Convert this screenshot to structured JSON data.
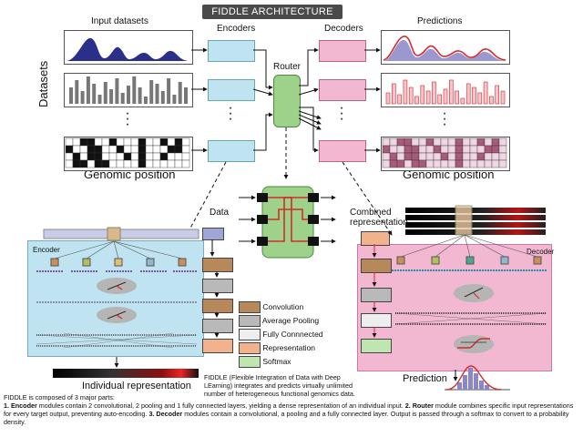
{
  "header": {
    "title": "FIDDLE ARCHITECTURE"
  },
  "top": {
    "input_label": "Input datasets",
    "datasets_label": "Datasets",
    "encoders_label": "Encoders",
    "router_label": "Router",
    "decoders_label": "Decoders",
    "predictions_label": "Predictions",
    "genomic_left": "Genomic position",
    "genomic_right": "Genomic position"
  },
  "middle": {
    "data_label": "Data",
    "combined_label": "Combined representation",
    "encoder_label": "Encoder",
    "decoder_label": "Decoder",
    "individual_label": "Individual representation",
    "prediction_label": "Prediction"
  },
  "legend": [
    {
      "label": "Convolution",
      "color": "#b7895a"
    },
    {
      "label": "Average Pooling",
      "color": "#b9b9b9"
    },
    {
      "label": "Fully Connnected",
      "color": "#eeeeee"
    },
    {
      "label": "Representation",
      "color": "#f2b28c"
    },
    {
      "label": "Softmax",
      "color": "#bfe6b0"
    }
  ],
  "fiddle_caption": "FIDDLE (Flexible Integration of Data with Deep LEarning) integrates and predicts virtually unlimited number of heterogeneous functional genomics data.",
  "footer": {
    "intro": "FIDDLE is composed of 3 major parts:",
    "p1_bold": "1. Encoder",
    "p1_text": " modules contain 2 convolutional, 2 pooling and 1 fully connected layers, yielding a dense representation of an individual input. ",
    "p2_bold": "2. Router",
    "p2_text": " module combines specific input representations for every target output, preventing auto-encoding. ",
    "p3_bold": "3. Decoder",
    "p3_text": " modules contain a convolutional, a pooling and a fully connected layer. Output is passed through a softmax to convert to a probability density."
  },
  "colors": {
    "encoder": "#bfe3f0",
    "decoder": "#f2b8d2",
    "router": "#9ed28a",
    "line_blue": "#2a2f8a",
    "bar_gray": "#777777",
    "pred_red": "#d42a2a"
  }
}
